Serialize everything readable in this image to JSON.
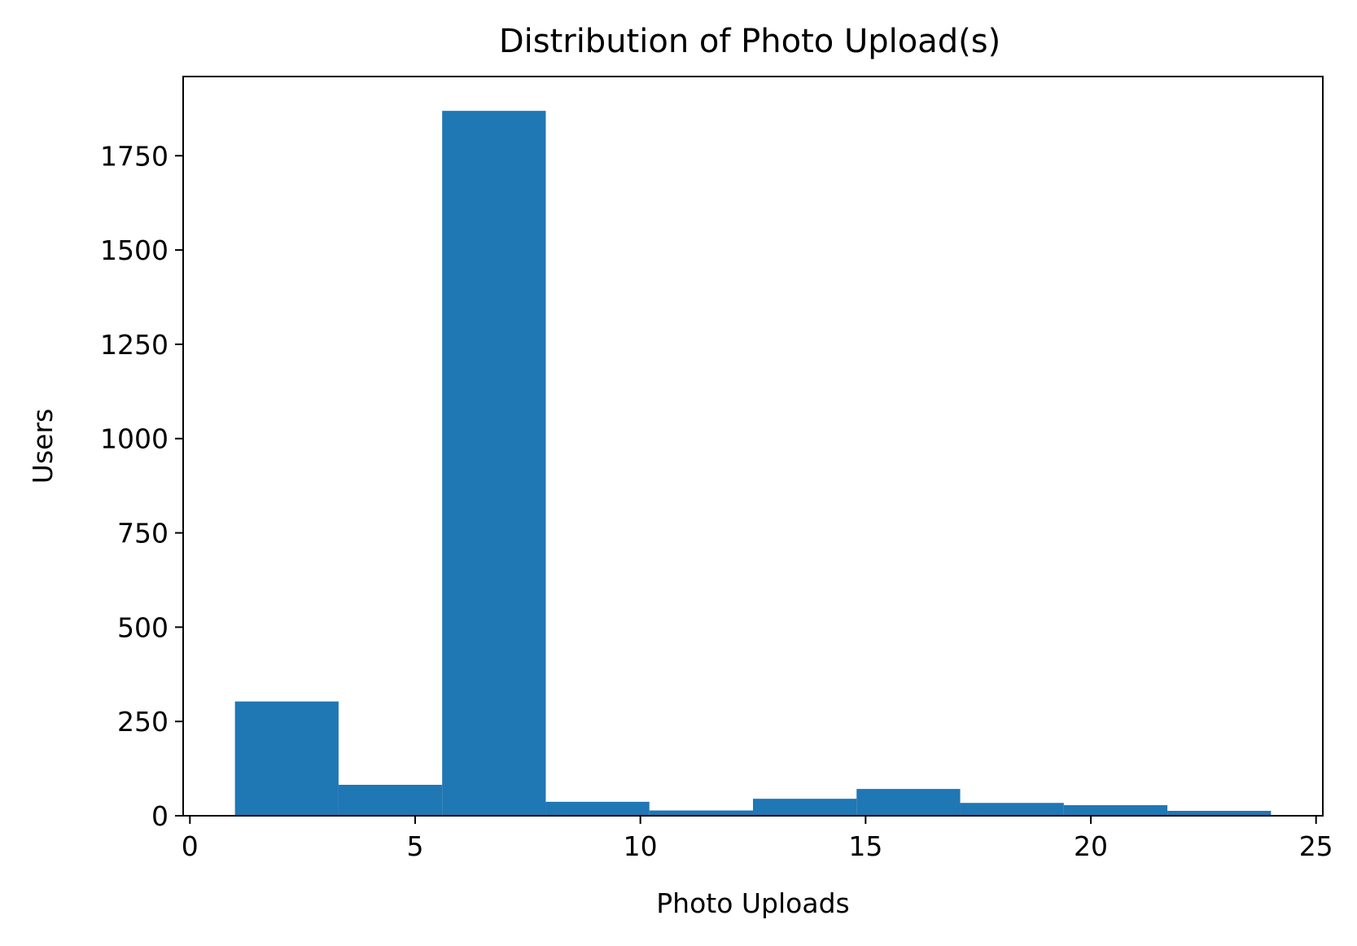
{
  "chart_data": {
    "type": "bar",
    "title": "Distribution of Photo Upload(s)",
    "xlabel": "Photo Uploads",
    "ylabel": "Users",
    "xlim": [
      -0.15,
      25.15
    ],
    "ylim": [
      0,
      1960
    ],
    "xticks": [
      0,
      5,
      10,
      15,
      20,
      25
    ],
    "yticks": [
      0,
      250,
      500,
      750,
      1000,
      1250,
      1500,
      1750
    ],
    "bins": [
      {
        "x0": 1.0,
        "x1": 3.3,
        "value": 303
      },
      {
        "x0": 3.3,
        "x1": 5.6,
        "value": 82
      },
      {
        "x0": 5.6,
        "x1": 7.9,
        "value": 1869
      },
      {
        "x0": 7.9,
        "x1": 10.2,
        "value": 37
      },
      {
        "x0": 10.2,
        "x1": 12.5,
        "value": 14
      },
      {
        "x0": 12.5,
        "x1": 14.8,
        "value": 45
      },
      {
        "x0": 14.8,
        "x1": 17.1,
        "value": 71
      },
      {
        "x0": 17.1,
        "x1": 19.4,
        "value": 34
      },
      {
        "x0": 19.4,
        "x1": 21.7,
        "value": 28
      },
      {
        "x0": 21.7,
        "x1": 24.0,
        "value": 13
      }
    ],
    "grid": false,
    "bar_color": "#1f77b4"
  }
}
